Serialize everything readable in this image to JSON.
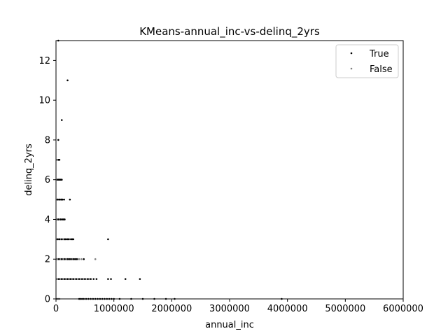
{
  "chart_data": {
    "type": "scatter",
    "title": "KMeans-annual_inc-vs-delinq_2yrs",
    "xlabel": "annual_inc",
    "ylabel": "delinq_2yrs",
    "xlim": [
      0,
      6000000
    ],
    "ylim": [
      0,
      13
    ],
    "x_ticks": [
      0,
      1000000,
      2000000,
      3000000,
      4000000,
      5000000,
      6000000
    ],
    "x_tick_labels": [
      "0",
      "1000000",
      "2000000",
      "3000000",
      "4000000",
      "5000000",
      "6000000"
    ],
    "y_ticks": [
      0,
      2,
      4,
      6,
      8,
      10,
      12
    ],
    "y_tick_labels": [
      "0",
      "2",
      "4",
      "6",
      "8",
      "10",
      "12"
    ],
    "grid": false,
    "legend_position": "top-right",
    "series": [
      {
        "name": "True",
        "color": "#000000",
        "x": [
          40000,
          200000,
          100000,
          40000,
          45000,
          52000,
          58000,
          30000,
          42000,
          55000,
          70000,
          85000,
          100000,
          30000,
          60000,
          90000,
          110000,
          140000,
          240000,
          40000,
          80000,
          110000,
          130000,
          150000,
          900000,
          30000,
          60000,
          100000,
          150000,
          170000,
          200000,
          220000,
          260000,
          280000,
          300000,
          50000,
          100000,
          150000,
          200000,
          230000,
          260000,
          300000,
          330000,
          360000,
          480000,
          50000,
          100000,
          150000,
          200000,
          250000,
          300000,
          350000,
          400000,
          450000,
          500000,
          550000,
          600000,
          650000,
          700000,
          900000,
          950000,
          1200000,
          1450000,
          400000,
          420000,
          450000,
          480000,
          520000,
          560000,
          600000,
          640000,
          680000,
          720000,
          760000,
          800000,
          840000,
          880000,
          920000,
          960000,
          1000000,
          1100000,
          1300000,
          1500000,
          1700000,
          1900000,
          2050000,
          3900000
        ],
        "y": [
          13,
          11,
          9,
          8,
          7,
          7,
          7,
          6,
          6,
          6,
          6,
          6,
          6,
          5,
          5,
          5,
          5,
          5,
          5,
          4,
          4,
          4,
          4,
          4,
          3,
          3,
          3,
          3,
          3,
          3,
          3,
          3,
          3,
          3,
          3,
          2,
          2,
          2,
          2,
          2,
          2,
          2,
          2,
          2,
          2,
          1,
          1,
          1,
          1,
          1,
          1,
          1,
          1,
          1,
          1,
          1,
          1,
          1,
          1,
          1,
          1,
          1,
          1,
          0,
          0,
          0,
          0,
          0,
          0,
          0,
          0,
          0,
          0,
          0,
          0,
          0,
          0,
          0,
          0,
          0,
          0,
          0,
          0,
          0,
          0,
          0,
          0
        ]
      },
      {
        "name": "False",
        "color": "#808080",
        "x": [
          15000,
          30000,
          45000,
          60000,
          75000,
          90000,
          105000,
          120000,
          135000,
          150000,
          165000,
          180000,
          195000,
          210000,
          225000,
          240000,
          255000,
          270000,
          285000,
          300000,
          330000,
          360000,
          390000,
          420000,
          450000,
          480000,
          510000,
          540000,
          570000,
          600000,
          15000,
          30000,
          45000,
          60000,
          75000,
          90000,
          105000,
          120000,
          135000,
          150000,
          165000,
          180000,
          195000,
          210000,
          225000,
          250000,
          280000,
          310000,
          340000,
          370000,
          400000,
          440000,
          680000,
          15000,
          30000,
          45000,
          60000,
          75000,
          90000,
          105000,
          120000,
          135000,
          150000,
          165000,
          180000,
          210000,
          240000,
          280000,
          15000,
          30000,
          45000,
          60000,
          75000,
          90000,
          15000,
          30000,
          45000,
          60000,
          75000,
          90000,
          110000,
          15000,
          30000,
          45000,
          60000,
          75000,
          15000,
          30000,
          45000,
          60000,
          15000,
          30000,
          45000,
          60000
        ],
        "y": [
          1,
          1,
          1,
          1,
          1,
          1,
          1,
          1,
          1,
          1,
          1,
          1,
          1,
          1,
          1,
          1,
          1,
          1,
          1,
          1,
          1,
          1,
          1,
          1,
          1,
          1,
          1,
          1,
          1,
          1,
          2,
          2,
          2,
          2,
          2,
          2,
          2,
          2,
          2,
          2,
          2,
          2,
          2,
          2,
          2,
          2,
          2,
          2,
          2,
          2,
          2,
          2,
          2,
          3,
          3,
          3,
          3,
          3,
          3,
          3,
          3,
          3,
          3,
          3,
          3,
          3,
          3,
          3,
          4,
          4,
          4,
          4,
          4,
          4,
          5,
          5,
          5,
          5,
          5,
          5,
          5,
          6,
          6,
          6,
          6,
          6,
          7,
          7,
          7,
          7,
          0,
          0,
          0,
          0
        ]
      }
    ]
  }
}
